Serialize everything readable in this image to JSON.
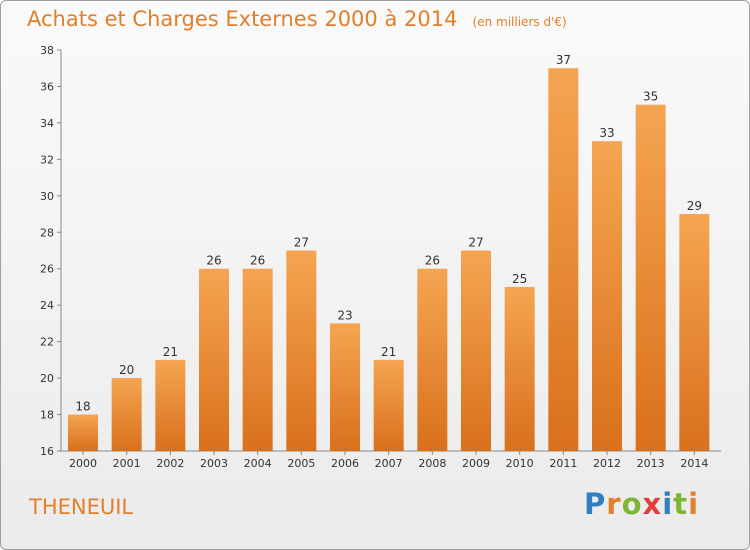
{
  "header": {
    "title": "Achats et Charges Externes 2000 à 2014",
    "unit": "(en milliers d'€)"
  },
  "footer": {
    "place": "THENEUIL",
    "logo": "Proxiti"
  },
  "colors": {
    "bar_top": "#f5a552",
    "bar_bottom": "#d9701c",
    "accent": "#e0802c"
  },
  "chart_data": {
    "type": "bar",
    "title": "Achats et Charges Externes 2000 à 2014",
    "subtitle": "(en milliers d'€)",
    "xlabel": "",
    "ylabel": "",
    "categories": [
      "2000",
      "2001",
      "2002",
      "2003",
      "2004",
      "2005",
      "2006",
      "2007",
      "2008",
      "2009",
      "2010",
      "2011",
      "2012",
      "2013",
      "2014"
    ],
    "values": [
      18,
      20,
      21,
      26,
      26,
      27,
      23,
      21,
      26,
      27,
      25,
      37,
      33,
      35,
      29
    ],
    "ylim": [
      16,
      38
    ],
    "yticks": [
      16,
      18,
      20,
      22,
      24,
      26,
      28,
      30,
      32,
      34,
      36,
      38
    ],
    "grid": false,
    "data_labels": true
  }
}
